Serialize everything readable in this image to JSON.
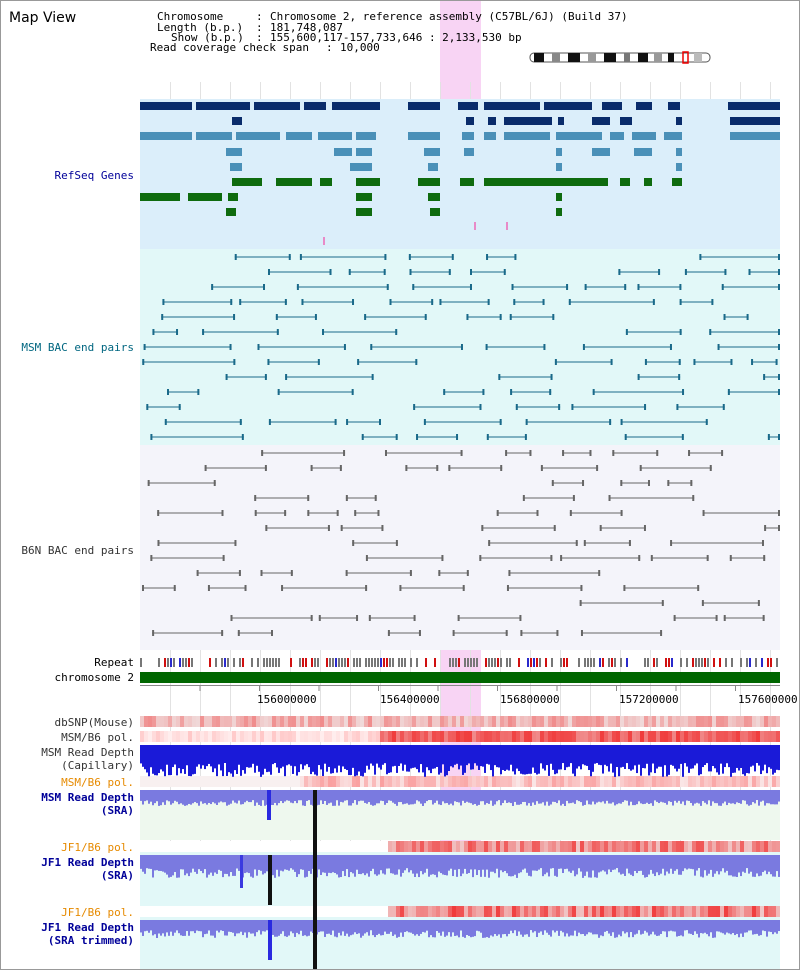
{
  "page": {
    "title": "Map View"
  },
  "info": {
    "chromosome_label": "Chromosome",
    "chromosome_value": "Chromosome 2, reference assembly (C57BL/6J) (Build 37)",
    "length_label": "Length (b.p.)",
    "length_value": "181,748,087",
    "show_label": "Show (b.p.)",
    "show_value": "155,600,117-157,733,646 : 2,133,530 bp",
    "coverage_label": "Read coverage check span",
    "coverage_value": "10,000"
  },
  "tracks": {
    "refseq": "RefSeq Genes",
    "msm_bac": "MSM BAC end pairs",
    "b6n_bac": "B6N BAC end pairs",
    "repeat": "Repeat",
    "chromosome": "chromosome 2",
    "dbsnp": "dbSNP(Mouse)",
    "msm_b6_pol_1": "MSM/B6 pol.",
    "msm_read_depth_cap": "MSM Read Depth\n(Capillary)",
    "msm_b6_pol_2": "MSM/B6 pol.",
    "msm_read_depth_sra": "MSM Read Depth\n(SRA)",
    "jf1_b6_pol_1": "JF1/B6 pol.",
    "jf1_read_depth_sra": "JF1 Read Depth\n(SRA)",
    "jf1_b6_pol_2": "JF1/B6 pol.",
    "jf1_read_depth_trim": "JF1 Read Depth\n(SRA trimmed)"
  },
  "axis": {
    "ticks": [
      "156000000",
      "156400000",
      "156800000",
      "157200000",
      "157600000"
    ]
  },
  "colors": {
    "refseq_bg": "#dbeefa",
    "msm_bac_bg": "#e2f8f8",
    "b6n_bg": "#f4f4fa",
    "refseq_label": "#000099",
    "msm_label": "#006680",
    "b6n_label": "#333333",
    "pol_orange": "#e68a00",
    "depth_blue": "#000099",
    "chromosome_green": "#006600",
    "highlight": "#f6c6f0"
  }
}
